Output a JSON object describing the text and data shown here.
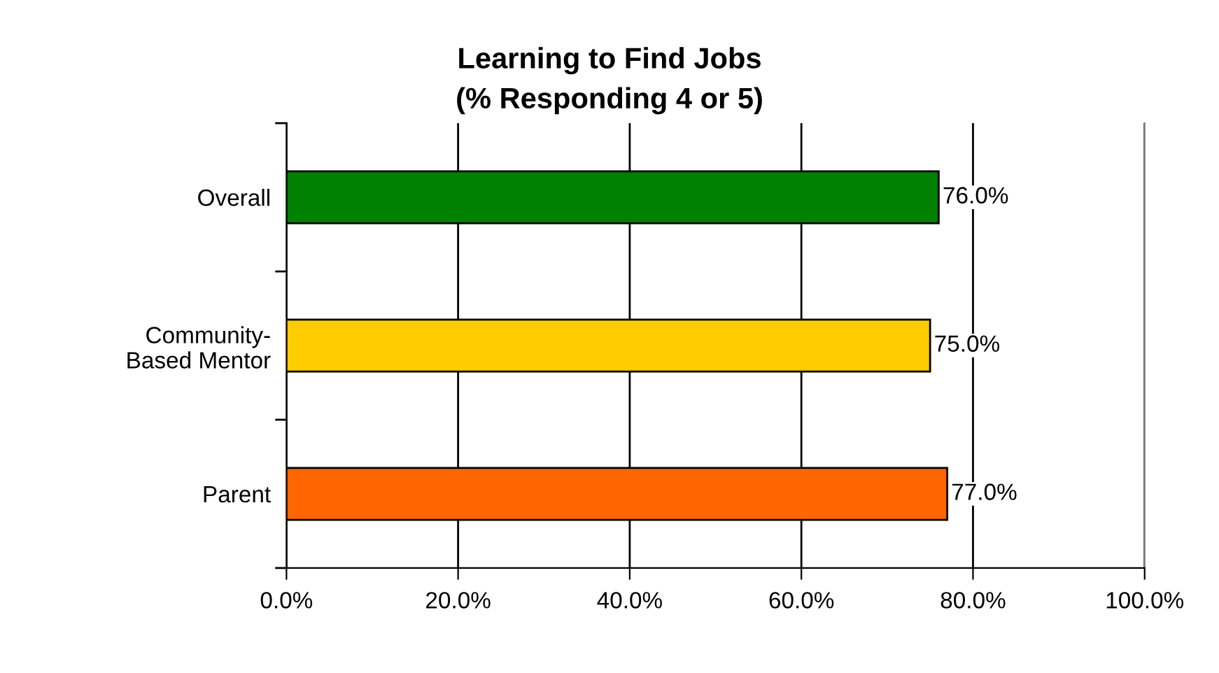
{
  "chart_data": {
    "type": "bar",
    "orientation": "horizontal",
    "title": "Learning to Find Jobs\n(% Responding 4 or 5)",
    "categories": [
      "Overall",
      "Community-\nBased Mentor",
      "Parent"
    ],
    "values": [
      76,
      75,
      77
    ],
    "colors": [
      "#008000",
      "#ffcc00",
      "#ff6600"
    ],
    "value_labels": [
      "76.0%",
      "75.0%",
      "77.0%"
    ],
    "xlim": [
      0,
      100
    ],
    "xticks": [
      {
        "value": 0,
        "label": "0.0%"
      },
      {
        "value": 20,
        "label": "20.0%"
      },
      {
        "value": 40,
        "label": "40.0%"
      },
      {
        "value": 60,
        "label": "60.0%"
      },
      {
        "value": 80,
        "label": "80.0%"
      },
      {
        "value": 100,
        "label": "100.0%"
      }
    ],
    "grid": "x",
    "legend": false
  }
}
